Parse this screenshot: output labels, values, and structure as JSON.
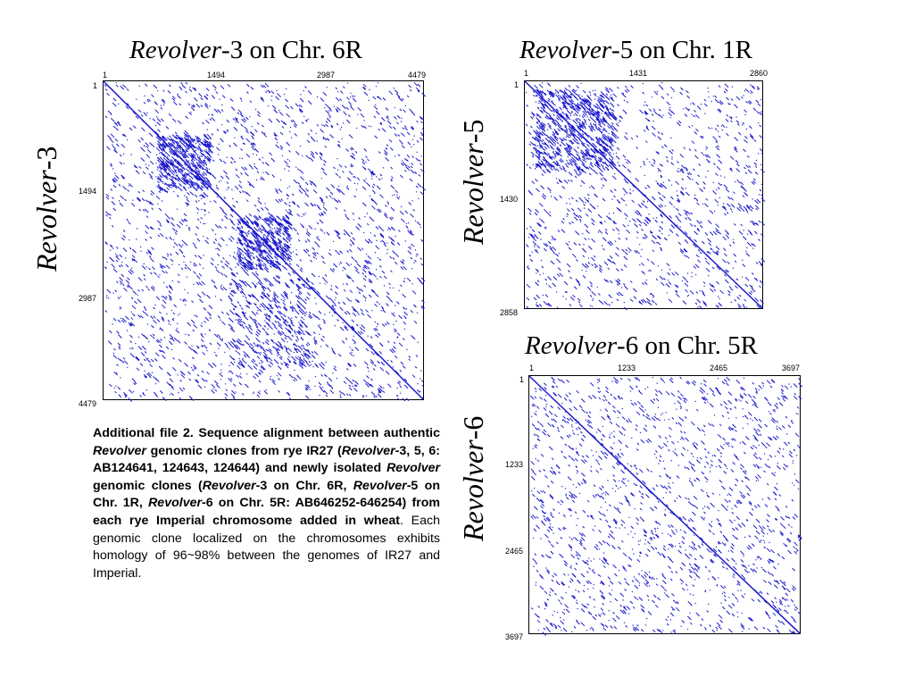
{
  "plots": [
    {
      "id": "r3",
      "title_italic": "Revolver",
      "title_rest": "-3 on Chr. 6R",
      "ylabel_italic": "Revolver",
      "ylabel_rest": "-3",
      "x_ticks": [
        "1",
        "1494",
        "2987",
        "4479"
      ],
      "y_ticks": [
        "1",
        "1494",
        "2987",
        "4479"
      ],
      "x_max": 4479,
      "y_max": 4479,
      "dot_color": "#1a1acc"
    },
    {
      "id": "r5",
      "title_italic": "Revolver",
      "title_rest": "-5 on Chr. 1R",
      "ylabel_italic": "Revolver",
      "ylabel_rest": "-5",
      "x_ticks": [
        "1",
        "1431",
        "2860"
      ],
      "y_ticks": [
        "1",
        "1430",
        "2858"
      ],
      "x_max": 2860,
      "y_max": 2858,
      "dot_color": "#1a1acc"
    },
    {
      "id": "r6",
      "title_italic": "Revolver",
      "title_rest": "-6 on Chr. 5R",
      "ylabel_italic": "Revolver",
      "ylabel_rest": "-6",
      "x_ticks": [
        "1",
        "1233",
        "2465",
        "3697"
      ],
      "y_ticks": [
        "1",
        "1233",
        "2465",
        "3697"
      ],
      "x_max": 3697,
      "y_max": 3697,
      "dot_color": "#1a1acc"
    }
  ],
  "caption": {
    "p1": "Additional file 2. Sequence alignment between authentic ",
    "p2": "Revolver",
    "p3": " genomic clones from rye IR27 (",
    "p4": "Revolver",
    "p5": "-3, 5, 6: AB124641, 124643, 124644)  and newly isolated ",
    "p6": "Revolver",
    "p7": " genomic clones (",
    "p8": "Revolver",
    "p9": "-3 on Chr. 6R, ",
    "p10": "Revolver",
    "p11": "-5 on Chr. 1R, ",
    "p12": "Revolver",
    "p13": "-6 on Chr. 5R: AB646252-646254) from each rye Imperial chromosome added in wheat",
    "p14": ". Each genomic clone localized on the chromosomes exhibits homology of 96~98% between the genomes of IR27 and Imperial."
  }
}
